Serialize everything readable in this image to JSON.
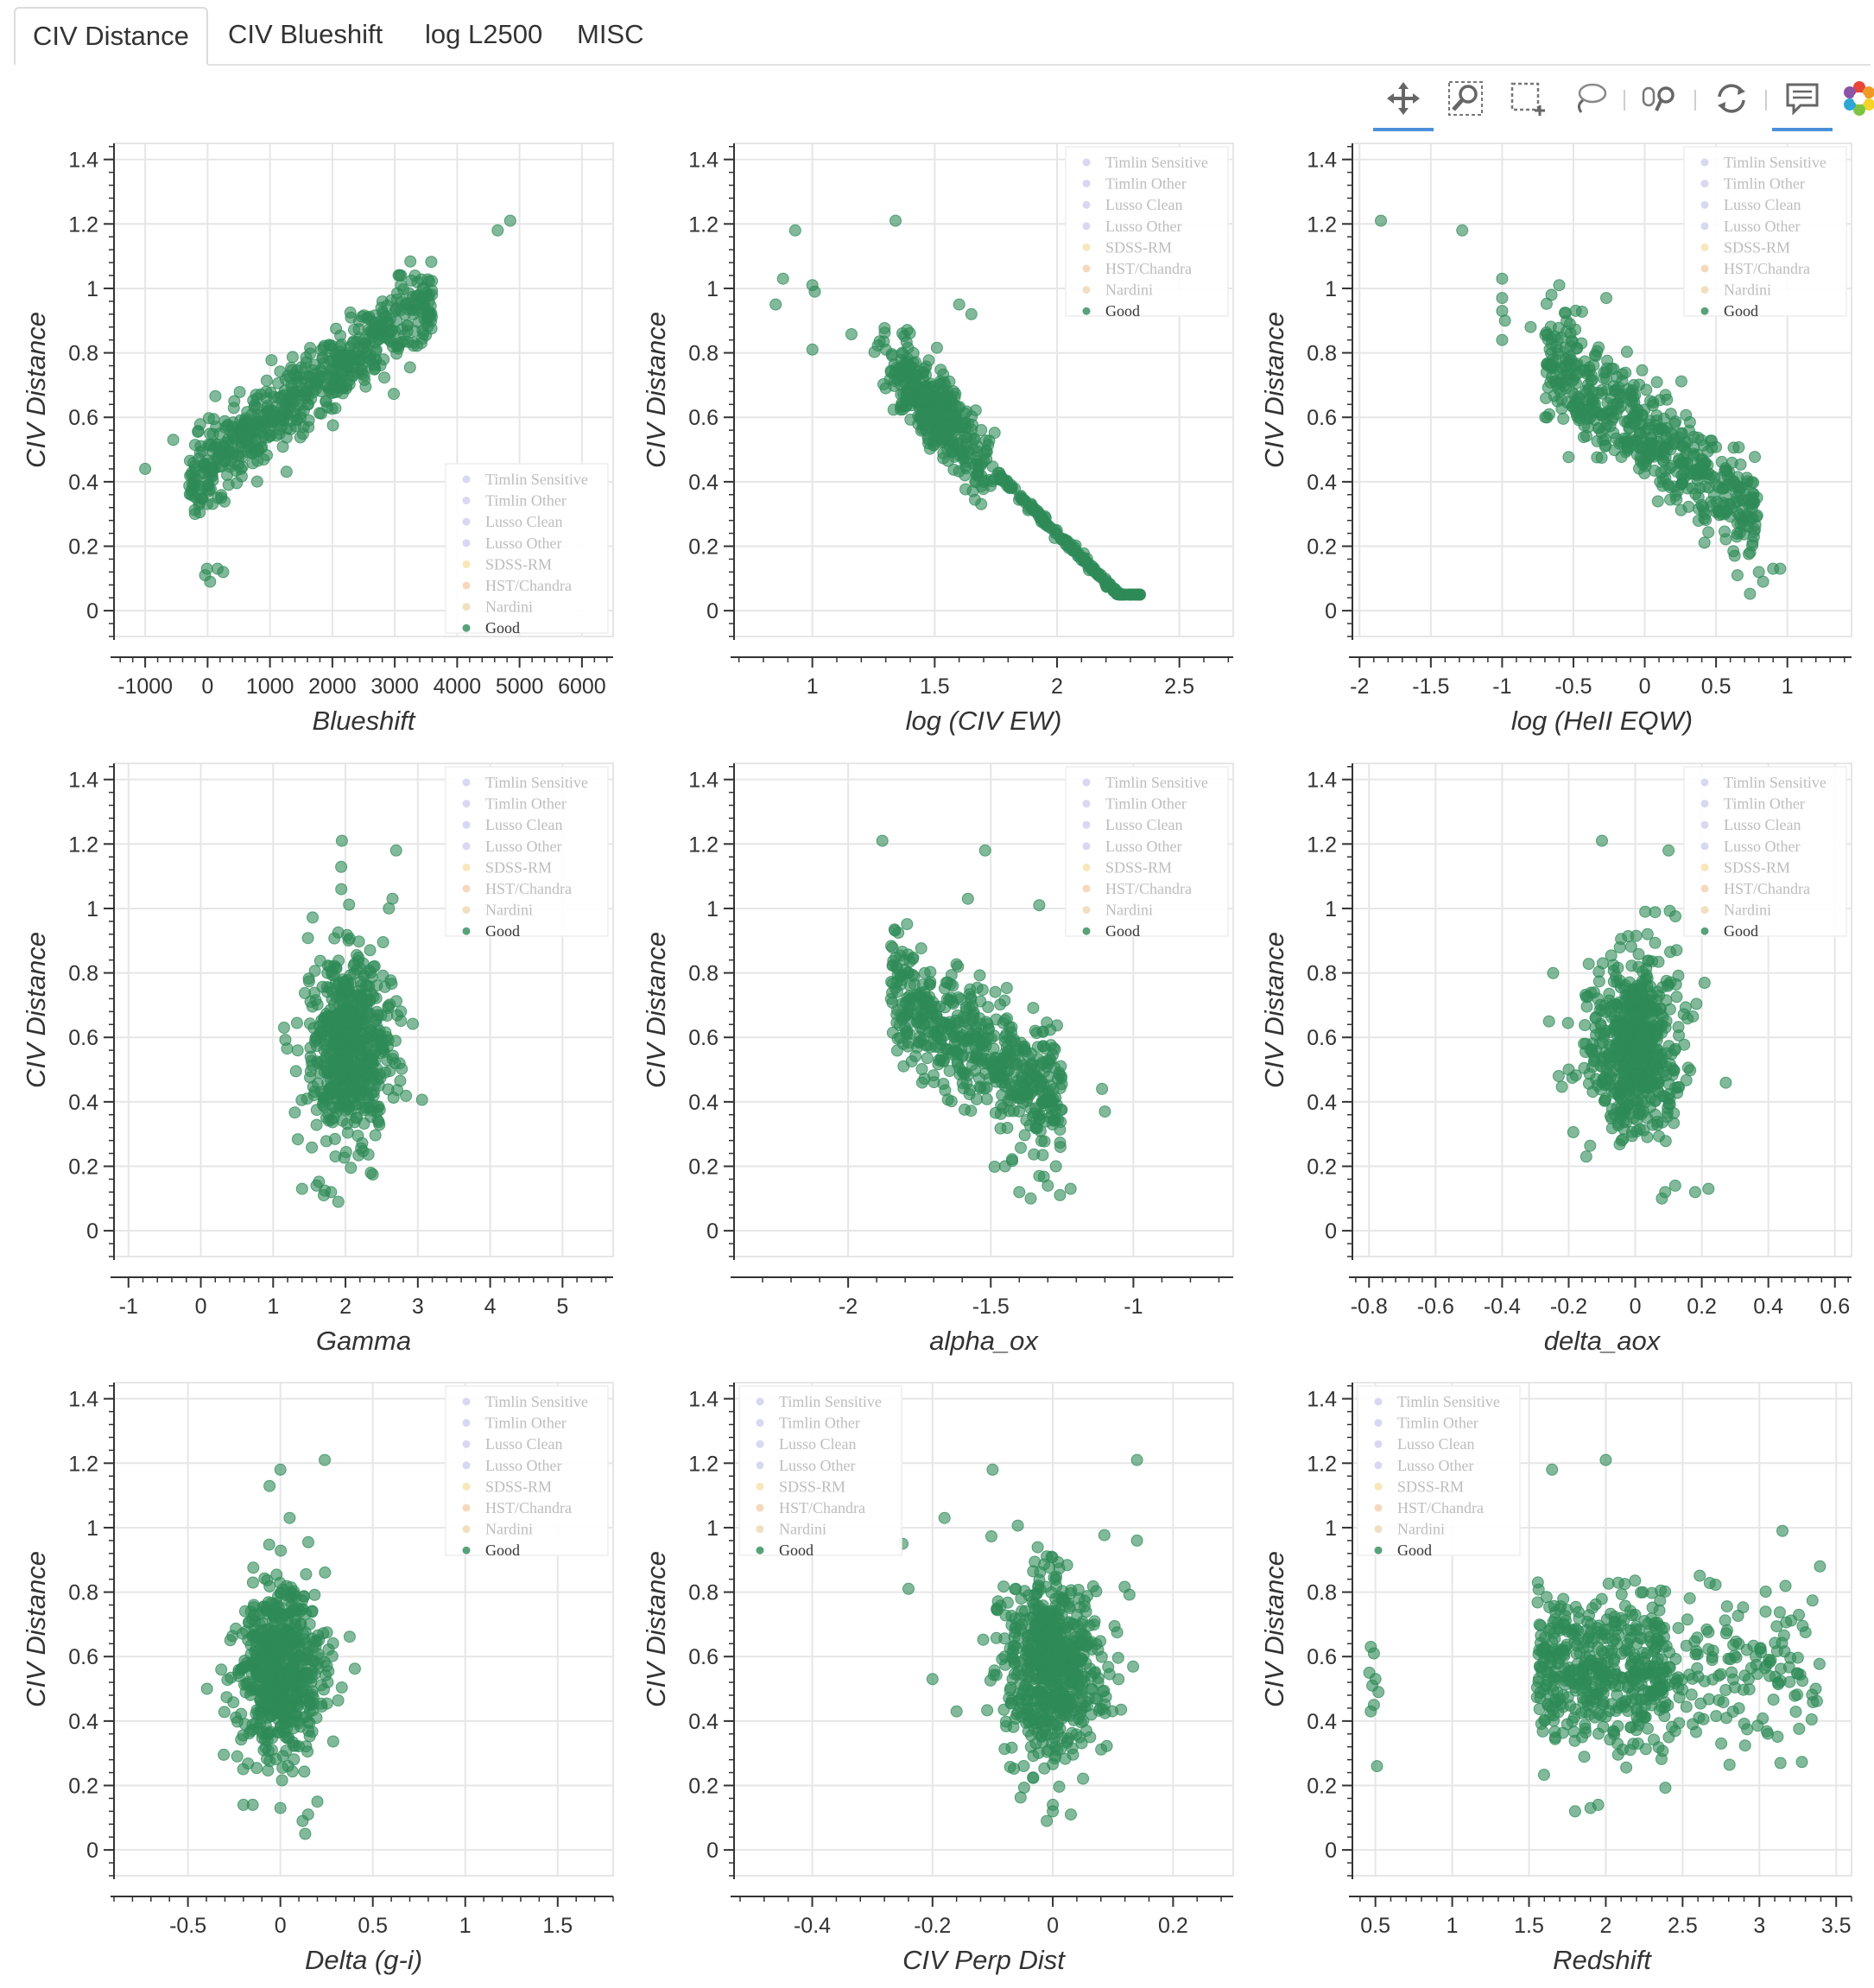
{
  "tabs": [
    {
      "label": "CIV Distance",
      "active": true
    },
    {
      "label": "CIV Blueshift",
      "active": false
    },
    {
      "label": "log L2500",
      "active": false
    },
    {
      "label": "MISC",
      "active": false
    }
  ],
  "toolbar": {
    "tools": [
      {
        "name": "pan-tool",
        "icon": "move-arrows-icon",
        "active": true
      },
      {
        "name": "box-zoom-tool",
        "icon": "zoom-magnifier-icon",
        "active": false
      },
      {
        "name": "box-select-tool",
        "icon": "box-select-icon",
        "active": false
      },
      {
        "name": "lasso-select-tool",
        "icon": "lasso-icon",
        "active": false
      },
      {
        "name": "wheel-zoom-tool",
        "icon": "wheel-zoom-icon",
        "active": false
      },
      {
        "name": "reset-tool",
        "icon": "reset-arrows-icon",
        "active": false
      },
      {
        "name": "hover-tool",
        "icon": "tooltip-icon",
        "active": true
      },
      {
        "name": "bokeh-logo",
        "icon": "bokeh-logo-icon",
        "active": false
      }
    ]
  },
  "colors": {
    "good": "#2e8b57",
    "grid": "#e6e6e6",
    "axis": "#333333"
  },
  "legend_items": [
    {
      "label": "Timlin Sensitive",
      "color": "#c8c8ee",
      "active": false
    },
    {
      "label": "Timlin Other",
      "color": "#c8c8ee",
      "active": false
    },
    {
      "label": "Lusso Clean",
      "color": "#c8c8ee",
      "active": false
    },
    {
      "label": "Lusso Other",
      "color": "#c8c8ee",
      "active": false
    },
    {
      "label": "SDSS-RM",
      "color": "#f5dd9c",
      "active": false
    },
    {
      "label": "HST/Chandra",
      "color": "#f2c7a2",
      "active": false
    },
    {
      "label": "Nardini",
      "color": "#ead3a6",
      "active": false
    },
    {
      "label": "Good",
      "color": "#2e8b57",
      "active": true
    }
  ],
  "chart_data": [
    {
      "type": "scatter",
      "xlabel": "Blueshift",
      "ylabel": "CIV Distance",
      "xlim": [
        -1500,
        6500
      ],
      "ylim": [
        -0.08,
        1.45
      ],
      "xticks": [
        -1000,
        0,
        1000,
        2000,
        3000,
        4000,
        5000,
        6000
      ],
      "xtick_labels": [
        "-1000",
        "0",
        "1000",
        "2000",
        "3000",
        "4000",
        "5000",
        "6000"
      ],
      "yticks": [
        0,
        0.2,
        0.4,
        0.6,
        0.8,
        1,
        1.2,
        1.4
      ],
      "ytick_labels": [
        "0",
        "0.2",
        "0.4",
        "0.6",
        "0.8",
        "1",
        "1.2",
        "1.4"
      ],
      "legend": "bottom-right",
      "cloud": {
        "kind": "linear",
        "x_range": [
          -300,
          3600
        ],
        "slope": 0.000145,
        "intercept": 0.45,
        "noise": 0.06,
        "count": 620
      },
      "extra_points": [
        [
          4650,
          1.18
        ],
        [
          4850,
          1.21
        ],
        [
          -1000,
          0.44
        ],
        [
          -550,
          0.53
        ],
        [
          -40,
          0.11
        ],
        [
          -10,
          0.13
        ],
        [
          40,
          0.09
        ],
        [
          160,
          0.13
        ],
        [
          250,
          0.12
        ],
        [
          3450,
          0.97
        ],
        [
          3550,
          0.96
        ],
        [
          3100,
          1.04
        ],
        [
          3100,
          1.01
        ]
      ]
    },
    {
      "type": "scatter",
      "xlabel": "log (CIV EW)",
      "ylabel": "CIV Distance",
      "xlim": [
        0.68,
        2.72
      ],
      "ylim": [
        -0.08,
        1.45
      ],
      "xticks": [
        1,
        1.5,
        2,
        2.5
      ],
      "xtick_labels": [
        "1",
        "1.5",
        "2",
        "2.5"
      ],
      "yticks": [
        0,
        0.2,
        0.4,
        0.6,
        0.8,
        1,
        1.2,
        1.4
      ],
      "ytick_labels": [
        "0",
        "0.2",
        "0.4",
        "0.6",
        "0.8",
        "1",
        "1.2",
        "1.4"
      ],
      "legend": "top-right",
      "cloud": {
        "kind": "ewline",
        "x_center": 1.5,
        "x_spread": 0.1,
        "count": 560
      },
      "extra_points": [
        [
          0.85,
          0.95
        ],
        [
          0.88,
          1.03
        ],
        [
          0.93,
          1.18
        ],
        [
          1.0,
          1.01
        ],
        [
          1.01,
          0.99
        ],
        [
          1.0,
          0.81
        ],
        [
          1.34,
          1.21
        ],
        [
          1.6,
          0.95
        ],
        [
          1.65,
          0.92
        ]
      ]
    },
    {
      "type": "scatter",
      "xlabel": "log (HeII EQW)",
      "ylabel": "CIV Distance",
      "xlim": [
        -2.05,
        1.45
      ],
      "ylim": [
        -0.08,
        1.45
      ],
      "xticks": [
        -2,
        -1.5,
        -1,
        -0.5,
        0,
        0.5,
        1
      ],
      "xtick_labels": [
        "-2",
        "-1.5",
        "-1",
        "-0.5",
        "0",
        "0.5",
        "1"
      ],
      "yticks": [
        0,
        0.2,
        0.4,
        0.6,
        0.8,
        1,
        1.2,
        1.4
      ],
      "ytick_labels": [
        "0",
        "0.2",
        "0.4",
        "0.6",
        "0.8",
        "1",
        "1.2",
        "1.4"
      ],
      "legend": "top-right",
      "cloud": {
        "kind": "linear",
        "x_range": [
          -0.7,
          0.8
        ],
        "slope": -0.33,
        "intercept": 0.55,
        "noise": 0.08,
        "count": 560
      },
      "extra_points": [
        [
          -1.85,
          1.21
        ],
        [
          -1.28,
          1.18
        ],
        [
          -1.0,
          1.03
        ],
        [
          -1.0,
          0.97
        ],
        [
          -1.0,
          0.93
        ],
        [
          -0.98,
          0.9
        ],
        [
          -1.0,
          0.84
        ],
        [
          -0.8,
          0.88
        ],
        [
          -0.6,
          1.01
        ],
        [
          -0.27,
          0.97
        ],
        [
          0.8,
          0.12
        ],
        [
          0.9,
          0.13
        ],
        [
          0.95,
          0.13
        ],
        [
          0.83,
          0.09
        ],
        [
          0.65,
          0.11
        ]
      ]
    },
    {
      "type": "scatter",
      "xlabel": "Gamma",
      "ylabel": "CIV Distance",
      "xlim": [
        -1.2,
        5.7
      ],
      "ylim": [
        -0.08,
        1.45
      ],
      "xticks": [
        -1,
        0,
        1,
        2,
        3,
        4,
        5
      ],
      "xtick_labels": [
        "-1",
        "0",
        "1",
        "2",
        "3",
        "4",
        "5"
      ],
      "yticks": [
        0,
        0.2,
        0.4,
        0.6,
        0.8,
        1,
        1.2,
        1.4
      ],
      "ytick_labels": [
        "0",
        "0.2",
        "0.4",
        "0.6",
        "0.8",
        "1",
        "1.2",
        "1.4"
      ],
      "legend": "top-right",
      "cloud": {
        "kind": "blob",
        "x_center": 2.05,
        "x_sd": 0.3,
        "y_center": 0.56,
        "y_sd": 0.15,
        "count": 600
      },
      "extra_points": [
        [
          1.95,
          1.21
        ],
        [
          2.7,
          1.18
        ],
        [
          2.65,
          1.03
        ],
        [
          2.6,
          1.0
        ],
        [
          1.4,
          0.13
        ],
        [
          1.6,
          0.14
        ],
        [
          1.8,
          0.12
        ],
        [
          1.9,
          0.09
        ],
        [
          1.7,
          0.11
        ],
        [
          2.35,
          0.18
        ],
        [
          1.15,
          0.63
        ]
      ]
    },
    {
      "type": "scatter",
      "xlabel": "alpha_ox",
      "ylabel": "CIV Distance",
      "xlim": [
        -2.4,
        -0.65
      ],
      "ylim": [
        -0.08,
        1.45
      ],
      "xticks": [
        -2,
        -1.5,
        -1
      ],
      "xtick_labels": [
        "-2",
        "-1.5",
        "-1"
      ],
      "yticks": [
        0,
        0.2,
        0.4,
        0.6,
        0.8,
        1,
        1.2,
        1.4
      ],
      "ytick_labels": [
        "0",
        "0.2",
        "0.4",
        "0.6",
        "0.8",
        "1",
        "1.2",
        "1.4"
      ],
      "legend": "top-right",
      "cloud": {
        "kind": "linear",
        "x_range": [
          -1.85,
          -1.25
        ],
        "slope": -0.6,
        "intercept": -0.36,
        "noise": 0.1,
        "count": 560
      },
      "extra_points": [
        [
          -1.88,
          1.21
        ],
        [
          -1.52,
          1.18
        ],
        [
          -1.33,
          1.01
        ],
        [
          -1.58,
          1.03
        ],
        [
          -1.36,
          0.1
        ],
        [
          -1.4,
          0.12
        ],
        [
          -1.22,
          0.13
        ],
        [
          -1.3,
          0.14
        ],
        [
          -1.11,
          0.44
        ],
        [
          -1.1,
          0.37
        ],
        [
          -1.45,
          0.2
        ],
        [
          -1.33,
          0.17
        ]
      ]
    },
    {
      "type": "scatter",
      "xlabel": "delta_aox",
      "ylabel": "CIV Distance",
      "xlim": [
        -0.85,
        0.65
      ],
      "ylim": [
        -0.08,
        1.45
      ],
      "xticks": [
        -0.8,
        -0.6,
        -0.4,
        -0.2,
        0,
        0.2,
        0.4,
        0.6
      ],
      "xtick_labels": [
        "-0.8",
        "-0.6",
        "-0.4",
        "-0.2",
        "0",
        "0.2",
        "0.4",
        "0.6"
      ],
      "yticks": [
        0,
        0.2,
        0.4,
        0.6,
        0.8,
        1,
        1.2,
        1.4
      ],
      "ytick_labels": [
        "0",
        "0.2",
        "0.4",
        "0.6",
        "0.8",
        "1",
        "1.2",
        "1.4"
      ],
      "legend": "top-right",
      "cloud": {
        "kind": "blob",
        "x_center": 0.0,
        "x_sd": 0.07,
        "y_center": 0.56,
        "y_sd": 0.14,
        "count": 600
      },
      "extra_points": [
        [
          -0.1,
          1.21
        ],
        [
          0.1,
          1.18
        ],
        [
          0.03,
          0.99
        ],
        [
          0.18,
          0.12
        ],
        [
          0.22,
          0.13
        ],
        [
          0.08,
          0.1
        ],
        [
          0.12,
          0.14
        ],
        [
          0.09,
          0.12
        ],
        [
          -0.23,
          0.48
        ],
        [
          -0.2,
          0.5
        ]
      ]
    },
    {
      "type": "scatter",
      "xlabel": "Delta (g-i)",
      "ylabel": "CIV Distance",
      "xlim": [
        -0.9,
        1.8
      ],
      "ylim": [
        -0.08,
        1.45
      ],
      "xticks": [
        -0.5,
        0,
        0.5,
        1,
        1.5
      ],
      "xtick_labels": [
        "-0.5",
        "0",
        "0.5",
        "1",
        "1.5"
      ],
      "yticks": [
        0,
        0.2,
        0.4,
        0.6,
        0.8,
        1,
        1.2,
        1.4
      ],
      "ytick_labels": [
        "0",
        "0.2",
        "0.4",
        "0.6",
        "0.8",
        "1",
        "1.2",
        "1.4"
      ],
      "legend": "top-right",
      "cloud": {
        "kind": "blob",
        "x_center": 0.0,
        "x_sd": 0.12,
        "y_center": 0.56,
        "y_sd": 0.14,
        "count": 600
      },
      "extra_points": [
        [
          0.0,
          1.18
        ],
        [
          0.24,
          1.21
        ],
        [
          0.05,
          1.03
        ],
        [
          -0.2,
          0.14
        ],
        [
          -0.15,
          0.14
        ],
        [
          0.0,
          0.13
        ],
        [
          0.15,
          0.11
        ],
        [
          0.12,
          0.09
        ],
        [
          0.2,
          0.15
        ]
      ]
    },
    {
      "type": "scatter",
      "xlabel": "CIV Perp Dist",
      "ylabel": "CIV Distance",
      "xlim": [
        -0.53,
        0.3
      ],
      "ylim": [
        -0.08,
        1.45
      ],
      "xticks": [
        -0.4,
        -0.2,
        0,
        0.2
      ],
      "xtick_labels": [
        "-0.4",
        "-0.2",
        "0",
        "0.2"
      ],
      "yticks": [
        0,
        0.2,
        0.4,
        0.6,
        0.8,
        1,
        1.2,
        1.4
      ],
      "ytick_labels": [
        "0",
        "0.2",
        "0.4",
        "0.6",
        "0.8",
        "1",
        "1.2",
        "1.4"
      ],
      "legend": "top-left",
      "cloud": {
        "kind": "blob",
        "x_center": 0.0,
        "x_sd": 0.045,
        "y_center": 0.56,
        "y_sd": 0.14,
        "count": 620
      },
      "extra_points": [
        [
          -0.1,
          1.18
        ],
        [
          0.14,
          1.21
        ],
        [
          -0.18,
          1.03
        ],
        [
          -0.25,
          0.95
        ],
        [
          -0.24,
          0.81
        ],
        [
          -0.2,
          0.53
        ],
        [
          -0.16,
          0.43
        ],
        [
          0.0,
          0.14
        ],
        [
          0.0,
          0.12
        ],
        [
          0.03,
          0.11
        ],
        [
          -0.01,
          0.09
        ],
        [
          0.14,
          0.96
        ]
      ]
    },
    {
      "type": "scatter",
      "xlabel": "Redshift",
      "ylabel": "CIV Distance",
      "xlim": [
        0.35,
        3.6
      ],
      "ylim": [
        -0.08,
        1.45
      ],
      "xticks": [
        0.5,
        1,
        1.5,
        2,
        2.5,
        3,
        3.5
      ],
      "xtick_labels": [
        "0.5",
        "1",
        "1.5",
        "2",
        "2.5",
        "3",
        "3.5"
      ],
      "yticks": [
        0,
        0.2,
        0.4,
        0.6,
        0.8,
        1,
        1.2,
        1.4
      ],
      "ytick_labels": [
        "0",
        "0.2",
        "0.4",
        "0.6",
        "0.8",
        "1",
        "1.2",
        "1.4"
      ],
      "legend": "top-left",
      "cloud": {
        "kind": "redshift",
        "x_range": [
          1.55,
          3.4
        ],
        "count": 620
      },
      "extra_points": [
        [
          0.47,
          0.63
        ],
        [
          0.49,
          0.61
        ],
        [
          0.46,
          0.55
        ],
        [
          0.5,
          0.53
        ],
        [
          0.48,
          0.51
        ],
        [
          0.52,
          0.49
        ],
        [
          0.49,
          0.45
        ],
        [
          0.47,
          0.43
        ],
        [
          0.51,
          0.26
        ],
        [
          2.0,
          1.21
        ],
        [
          1.65,
          1.18
        ],
        [
          3.15,
          0.99
        ],
        [
          1.8,
          0.12
        ],
        [
          1.9,
          0.13
        ],
        [
          1.95,
          0.14
        ]
      ]
    }
  ]
}
